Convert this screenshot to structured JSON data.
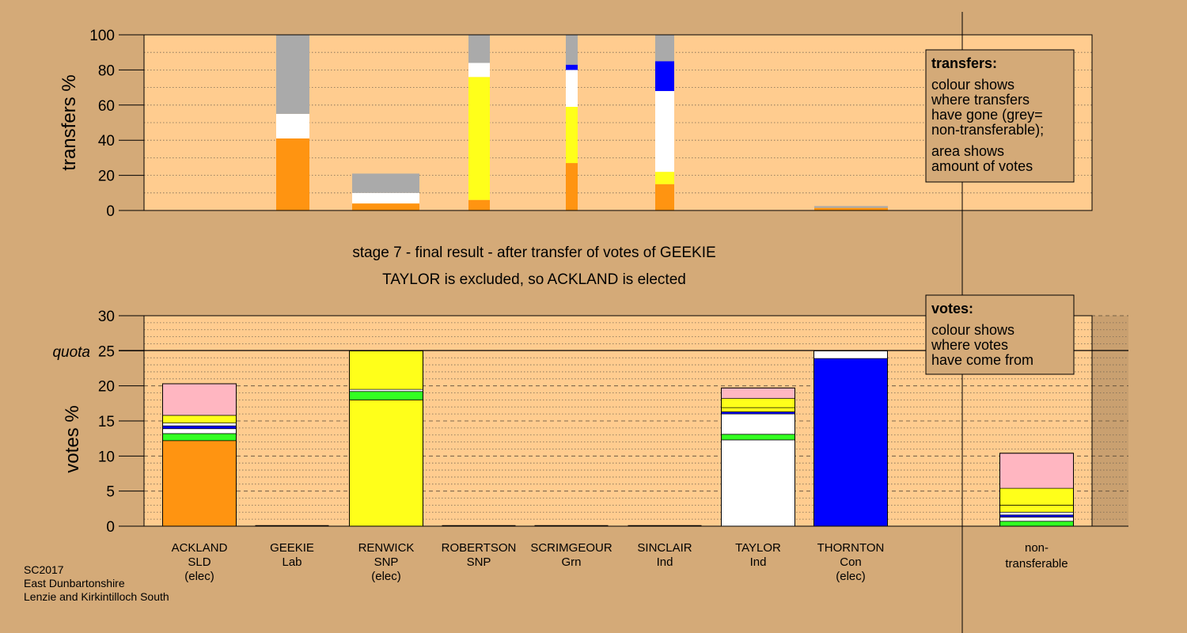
{
  "colors": {
    "background": "#d4aa78",
    "plot_background": "#ffcc8f",
    "SLD": "#ff9411",
    "Lab": "#e8001c",
    "SNP": "#ffff1a",
    "Grn": "#33ff22",
    "Ind": "#ffffff",
    "Con": "#0000ff",
    "non_transferable": "#aaaaaa",
    "prior_transfers": "#ffb6c1"
  },
  "titles": {
    "stage": "stage 7 - final result - after transfer of votes of GEEKIE",
    "result": "TAYLOR is excluded, so ACKLAND is elected"
  },
  "footer": {
    "line1": "SC2017",
    "line2": "East Dunbartonshire",
    "line3": "Lenzie and Kirkintilloch South"
  },
  "top_legend": {
    "heading": "transfers:",
    "lines1": [
      "colour shows",
      "where transfers",
      "have gone (grey=",
      "non-transferable);"
    ],
    "lines2": [
      "area shows",
      "amount of votes"
    ]
  },
  "bottom_legend": {
    "heading": "votes:",
    "lines": [
      "colour shows",
      "where votes",
      "have come from"
    ]
  },
  "chart_data": [
    {
      "type": "bar",
      "name": "transfers",
      "ylabel": "transfers %",
      "ylim": [
        0,
        100
      ],
      "yticks": [
        0,
        20,
        40,
        60,
        80,
        100
      ],
      "grid": "dotted every 10",
      "stacks": [
        {
          "segments": [
            {
              "party": "SLD",
              "value": 41
            },
            {
              "party": "Ind",
              "value": 14
            },
            {
              "party": "non_transferable",
              "value": 45
            }
          ]
        },
        {
          "segments": [
            {
              "party": "SLD",
              "value": 4
            },
            {
              "party": "Ind",
              "value": 6
            },
            {
              "party": "non_transferable",
              "value": 11
            }
          ]
        },
        {
          "segments": [
            {
              "party": "SLD",
              "value": 6
            },
            {
              "party": "SNP",
              "value": 70
            },
            {
              "party": "Ind",
              "value": 8
            },
            {
              "party": "non_transferable",
              "value": 16
            }
          ]
        },
        {
          "segments": [
            {
              "party": "SLD",
              "value": 27
            },
            {
              "party": "SNP",
              "value": 32
            },
            {
              "party": "Ind",
              "value": 21
            },
            {
              "party": "Con",
              "value": 3
            },
            {
              "party": "non_transferable",
              "value": 17
            }
          ]
        },
        {
          "segments": [
            {
              "party": "SLD",
              "value": 15
            },
            {
              "party": "SNP",
              "value": 7
            },
            {
              "party": "Ind",
              "value": 46
            },
            {
              "party": "Con",
              "value": 17
            },
            {
              "party": "non_transferable",
              "value": 15
            }
          ]
        },
        {
          "segments": [
            {
              "party": "SLD",
              "value": 1.5
            },
            {
              "party": "non_transferable",
              "value": 1
            }
          ]
        }
      ]
    },
    {
      "type": "bar",
      "name": "votes",
      "ylabel": "votes %",
      "ylim": [
        0,
        30
      ],
      "yticks": [
        0,
        5,
        10,
        15,
        20,
        25,
        30
      ],
      "quota": 25,
      "quota_label": "quota",
      "grid": "dashed every 5, dotted every 1",
      "categories": [
        {
          "name": "ACKLAND",
          "party": "SLD",
          "note": "(elec)"
        },
        {
          "name": "GEEKIE",
          "party": "Lab",
          "note": ""
        },
        {
          "name": "RENWICK",
          "party": "SNP",
          "note": "(elec)"
        },
        {
          "name": "ROBERTSON",
          "party": "SNP",
          "note": ""
        },
        {
          "name": "SCRIMGEOUR",
          "party": "Grn",
          "note": ""
        },
        {
          "name": "SINCLAIR",
          "party": "Ind",
          "note": ""
        },
        {
          "name": "TAYLOR",
          "party": "Ind",
          "note": ""
        },
        {
          "name": "THORNTON",
          "party": "Con",
          "note": "(elec)"
        }
      ],
      "nontransferable_label": [
        "non-",
        "transferable"
      ],
      "stacks": [
        {
          "category": "ACKLAND",
          "segments": [
            {
              "party": "SLD",
              "value": 12.2
            },
            {
              "party": "Grn",
              "value": 1.0
            },
            {
              "party": "Ind",
              "value": 0.7
            },
            {
              "party": "Con",
              "value": 0.4
            },
            {
              "party": "Ind",
              "value": 0.4
            },
            {
              "party": "SNP",
              "value": 1.1
            },
            {
              "party": "prior_transfers",
              "value": 4.5
            }
          ]
        },
        {
          "category": "RENWICK",
          "segments": [
            {
              "party": "SNP",
              "value": 18.0
            },
            {
              "party": "Grn",
              "value": 1.2
            },
            {
              "party": "Ind",
              "value": 0.3
            },
            {
              "party": "SNP",
              "value": 5.5
            }
          ]
        },
        {
          "category": "TAYLOR",
          "segments": [
            {
              "party": "Ind",
              "value": 12.3
            },
            {
              "party": "Grn",
              "value": 0.8
            },
            {
              "party": "Ind",
              "value": 2.9
            },
            {
              "party": "Con",
              "value": 0.3
            },
            {
              "party": "SNP",
              "value": 0.6
            },
            {
              "party": "SNP",
              "value": 1.3
            },
            {
              "party": "prior_transfers",
              "value": 1.5
            }
          ]
        },
        {
          "category": "THORNTON",
          "segments": [
            {
              "party": "Con",
              "value": 23.9
            },
            {
              "party": "Ind",
              "value": 1.1
            }
          ]
        },
        {
          "category": "non-transferable",
          "segments": [
            {
              "party": "Grn",
              "value": 0.7
            },
            {
              "party": "Ind",
              "value": 0.6
            },
            {
              "party": "Con",
              "value": 0.3
            },
            {
              "party": "Ind",
              "value": 0.4
            },
            {
              "party": "SNP",
              "value": 1.0
            },
            {
              "party": "SNP",
              "value": 2.4
            },
            {
              "party": "prior_transfers",
              "value": 5.0
            }
          ]
        }
      ]
    }
  ]
}
